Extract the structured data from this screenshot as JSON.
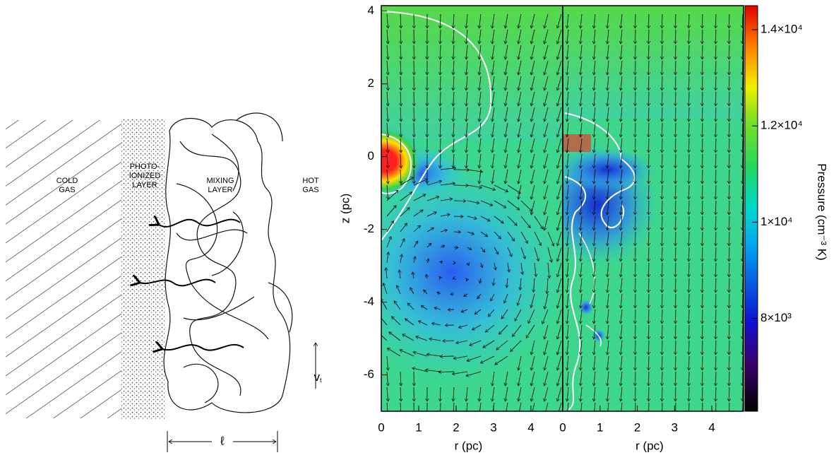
{
  "diagram": {
    "cold_gas": [
      "COLD",
      "GAS"
    ],
    "photo_layer": [
      "PHOTO-",
      "IONIZED",
      "LAYER"
    ],
    "mixing_layer": [
      "MIXING",
      "LAYER"
    ],
    "hot_gas": [
      "HOT",
      "GAS"
    ],
    "velocity_label": {
      "main": "v",
      "sub": "t"
    },
    "length_label": "ℓ"
  },
  "chart_data": [
    {
      "type": "heatmap",
      "xlabel": "r (pc)",
      "ylabel": "z (pc)",
      "xlim": [
        0,
        4.85
      ],
      "ylim": [
        -7,
        4.15
      ],
      "xticks": [
        0,
        1,
        2,
        3,
        4
      ],
      "yticks": [
        -6,
        -4,
        -2,
        0,
        2,
        4
      ]
    },
    {
      "type": "heatmap",
      "xlabel": "r (pc)",
      "xlim": [
        0,
        4.85
      ],
      "ylim": [
        -7,
        4.15
      ],
      "xticks": [
        0,
        1,
        2,
        3,
        4
      ],
      "colorbar": {
        "label": "Pressure (cm⁻³ K)",
        "lim": [
          6070,
          14500
        ],
        "ticks": [
          {
            "value": 8000,
            "label": "8×10³"
          },
          {
            "value": 10000,
            "label": "1×10⁴"
          },
          {
            "value": 12000,
            "label": "1.2×10⁴"
          },
          {
            "value": 14000,
            "label": "1.4×10⁴"
          }
        ]
      }
    }
  ]
}
